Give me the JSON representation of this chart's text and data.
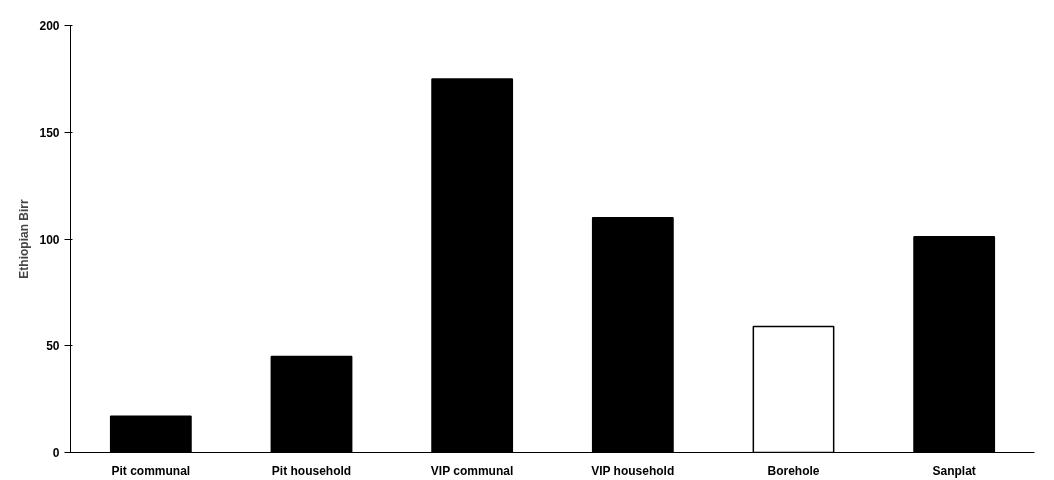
{
  "chart_data": {
    "type": "bar",
    "ylabel": "Ethiopian Birr",
    "categories": [
      "Pit communal",
      "Pit household",
      "VIP communal",
      "VIP household",
      "Borehole",
      "Sanplat"
    ],
    "values": [
      17,
      45,
      175,
      110,
      59,
      101
    ],
    "colors": [
      "#000000",
      "#000000",
      "#000000",
      "#000000",
      "#ffffff",
      "#000000"
    ],
    "ylim": [
      0,
      200
    ],
    "yticks": [
      0,
      50,
      100,
      150,
      200
    ],
    "grid": false
  }
}
